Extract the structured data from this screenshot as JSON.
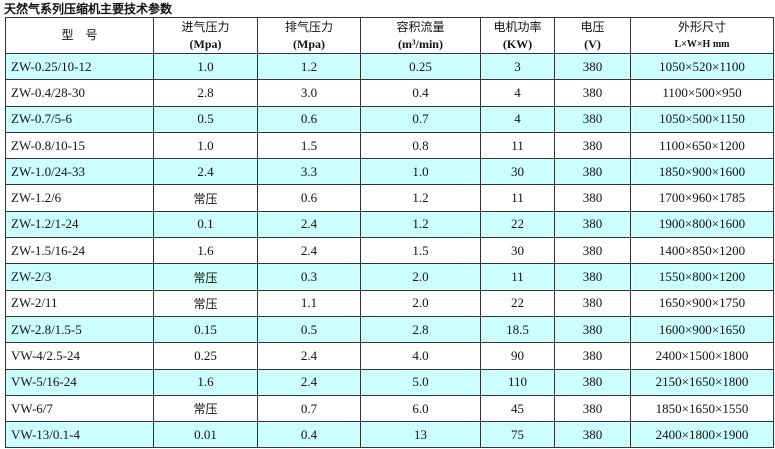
{
  "title": "天然气系列压缩机主要技术参数",
  "headers": [
    {
      "label": "型　号",
      "unit": ""
    },
    {
      "label": "进气压力",
      "unit": "(Mpa)"
    },
    {
      "label": "排气压力",
      "unit": "(Mpa)"
    },
    {
      "label": "容积流量",
      "unit": "(m³/min)"
    },
    {
      "label": "电机功率",
      "unit": "(KW)"
    },
    {
      "label": "电压",
      "unit": "(V)"
    },
    {
      "label": "外形尺寸",
      "unit": "L×W×H mm"
    }
  ],
  "shade_color": "#ccffff",
  "rows": [
    [
      "ZW-0.25/10-12",
      "1.0",
      "1.2",
      "0.25",
      "3",
      "380",
      "1050×520×1100"
    ],
    [
      "ZW-0.4/28-30",
      "2.8",
      "3.0",
      "0.4",
      "4",
      "380",
      "1100×500×950"
    ],
    [
      "ZW-0.7/5-6",
      "0.5",
      "0.6",
      "0.7",
      "4",
      "380",
      "1050×500×1150"
    ],
    [
      "ZW-0.8/10-15",
      "1.0",
      "1.5",
      "0.8",
      "11",
      "380",
      "1100×650×1200"
    ],
    [
      "ZW-1.0/24-33",
      "2.4",
      "3.3",
      "1.0",
      "30",
      "380",
      "1850×900×1600"
    ],
    [
      "ZW-1.2/6",
      "常压",
      "0.6",
      "1.2",
      "11",
      "380",
      "1700×960×1785"
    ],
    [
      "ZW-1.2/1-24",
      "0.1",
      "2.4",
      "1.2",
      "22",
      "380",
      "1900×800×1600"
    ],
    [
      "ZW-1.5/16-24",
      "1.6",
      "2.4",
      "1.5",
      "30",
      "380",
      "1400×850×1200"
    ],
    [
      "ZW-2/3",
      "常压",
      "0.3",
      "2.0",
      "11",
      "380",
      "1550×800×1200"
    ],
    [
      "ZW-2/11",
      "常压",
      "1.1",
      "2.0",
      "22",
      "380",
      "1650×900×1750"
    ],
    [
      "ZW-2.8/1.5-5",
      "0.15",
      "0.5",
      "2.8",
      "18.5",
      "380",
      "1600×900×1650"
    ],
    [
      "VW-4/2.5-24",
      "0.25",
      "2.4",
      "4.0",
      "90",
      "380",
      "2400×1500×1800"
    ],
    [
      "VW-5/16-24",
      "1.6",
      "2.4",
      "5.0",
      "110",
      "380",
      "2150×1650×1800"
    ],
    [
      "VW-6/7",
      "常压",
      "0.7",
      "6.0",
      "45",
      "380",
      "1850×1650×1550"
    ],
    [
      "VW-13/0.1-4",
      "0.01",
      "0.4",
      "13",
      "75",
      "380",
      "2400×1800×1900"
    ]
  ]
}
